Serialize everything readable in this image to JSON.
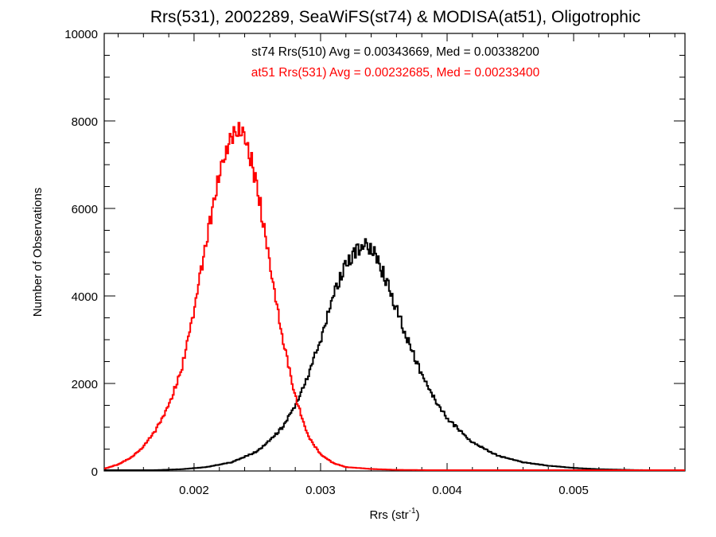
{
  "chart_data": {
    "type": "line",
    "title": "Rrs(531), 2002289, SeaWiFS(st74) & MODISA(at51), Oligotrophic",
    "xlabel_main": "Rrs (str",
    "xlabel_sup": "-1",
    "xlabel_close": ")",
    "ylabel": "Number of Observations",
    "xlim": [
      0.00129,
      0.00588
    ],
    "ylim": [
      0,
      10000
    ],
    "x_ticks": [
      "0.002",
      "0.003",
      "0.004",
      "0.005"
    ],
    "x_tick_values": [
      0.002,
      0.003,
      0.004,
      0.005
    ],
    "y_ticks": [
      "0",
      "2000",
      "4000",
      "6000",
      "8000",
      "10000"
    ],
    "y_tick_values": [
      0,
      2000,
      4000,
      6000,
      8000,
      10000
    ],
    "grid": false,
    "annotations": [
      {
        "text": "st74 Rrs(510) Avg = 0.00343669, Med = 0.00338200",
        "color": "#000000"
      },
      {
        "text": "at51 Rrs(531) Avg = 0.00232685, Med = 0.00233400",
        "color": "#ff0000"
      }
    ],
    "series": [
      {
        "color": "#000000",
        "x": [
          0.00129,
          0.0015,
          0.0017,
          0.0019,
          0.0021,
          0.0023,
          0.0025,
          0.0026,
          0.0027,
          0.0028,
          0.0029,
          0.003,
          0.0031,
          0.0032,
          0.00325,
          0.0033,
          0.00335,
          0.0034,
          0.0035,
          0.0036,
          0.0037,
          0.0038,
          0.0039,
          0.004,
          0.0042,
          0.0044,
          0.0046,
          0.0048,
          0.005,
          0.0052,
          0.0055,
          0.00588
        ],
        "y": [
          0,
          10,
          20,
          40,
          90,
          200,
          450,
          700,
          1000,
          1500,
          2150,
          3000,
          4000,
          4750,
          4900,
          5100,
          5200,
          5100,
          4500,
          3700,
          2900,
          2200,
          1650,
          1200,
          650,
          350,
          200,
          120,
          70,
          40,
          20,
          10
        ]
      },
      {
        "color": "#ff0000",
        "x": [
          0.00129,
          0.0014,
          0.0015,
          0.0016,
          0.0017,
          0.0018,
          0.0019,
          0.002,
          0.0021,
          0.0022,
          0.00225,
          0.0023,
          0.00235,
          0.0024,
          0.00245,
          0.0025,
          0.0026,
          0.0027,
          0.0028,
          0.0029,
          0.003,
          0.0031,
          0.0032,
          0.0034,
          0.0036,
          0.004,
          0.0045,
          0.005,
          0.00588
        ],
        "y": [
          50,
          150,
          300,
          550,
          950,
          1500,
          2300,
          3700,
          5300,
          6800,
          7300,
          7650,
          7800,
          7600,
          7100,
          6500,
          4700,
          3000,
          1700,
          800,
          380,
          180,
          90,
          45,
          25,
          15,
          10,
          10,
          10
        ]
      }
    ]
  }
}
